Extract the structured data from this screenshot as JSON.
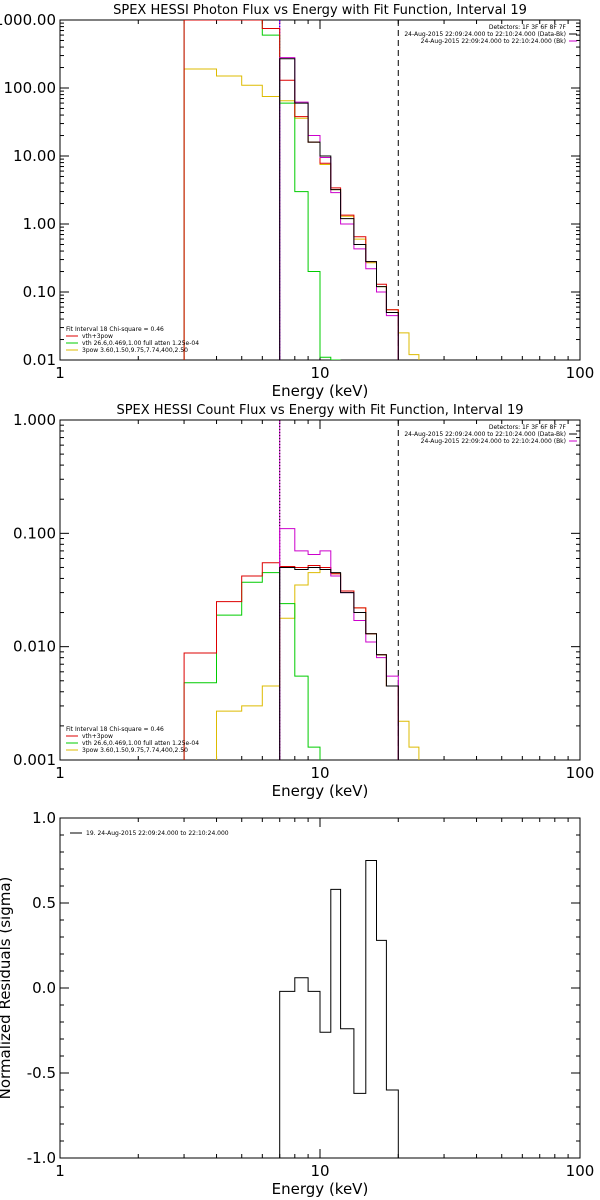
{
  "chart_data": [
    {
      "type": "line",
      "title": "SPEX HESSI Photon Flux vs Energy with Fit Function, Interval 19",
      "xlabel": "Energy (keV)",
      "ylabel": "",
      "xscale": "log",
      "yscale": "log",
      "xlim": [
        1,
        100
      ],
      "ylim": [
        0.01,
        1000
      ],
      "xticks": [
        1,
        10,
        100
      ],
      "xtick_labels": [
        "1",
        "10",
        "100"
      ],
      "yticks": [
        1000,
        100,
        10,
        1,
        0.1,
        0.01
      ],
      "ytick_labels": [
        "1000.00",
        "100.00",
        "10.00",
        "1.00",
        "0.10",
        "0.01"
      ],
      "top_right_text": [
        "Detectors: 1F 3F 6F 8F 7F",
        "24-Aug-2015 22:09:24.000 to 22:10:24.000 (Data-Bk)",
        "24-Aug-2015 22:09:24.000 to 22:10:24.000 (Bk)"
      ],
      "top_right_colors": [
        "#000000",
        "#cc00cc"
      ],
      "legend_header": "Fit Interval 18   Chi-square = 0.46",
      "legend": [
        {
          "label": "vth+3pow",
          "color": "#dd0000"
        },
        {
          "label": "vth 26.6,0.469,1.00  full atten 1.25e-04",
          "color": "#00cc00"
        },
        {
          "label": "3pow 3.60,1.50,9.75,7.74,400,2.50",
          "color": "#ddbb00"
        }
      ],
      "vlines": [
        {
          "x": 7.0,
          "style": "solid",
          "color": "#cc00cc"
        },
        {
          "x": 7.0,
          "style": "dotted",
          "color": "#0000ff"
        },
        {
          "x": 20.0,
          "style": "dashed",
          "color": "#000000"
        }
      ],
      "series": [
        {
          "role": "data_minus_bk",
          "color": "#000000",
          "edges": [
            7.0,
            8.0,
            9.0,
            10.0,
            11.0,
            12.0,
            13.5,
            15.0,
            16.5,
            18.0,
            20.0
          ],
          "values": [
            270,
            60,
            16,
            10,
            3.2,
            1.2,
            0.5,
            0.28,
            0.12,
            0.05
          ]
        },
        {
          "role": "background",
          "color": "#cc00cc",
          "edges": [
            7.0,
            8.0,
            9.0,
            10.0,
            11.0,
            12.0,
            13.5,
            15.0,
            16.5,
            18.0,
            20.0
          ],
          "values": [
            280,
            62,
            20,
            9.5,
            2.9,
            1.0,
            0.43,
            0.22,
            0.1,
            0.045
          ]
        },
        {
          "name": "vth+3pow",
          "color": "#dd0000",
          "edges": [
            3.0,
            4.0,
            5.0,
            6.0,
            7.0,
            8.0,
            9.0,
            10.0,
            11.0,
            12.0,
            13.5,
            15.0,
            16.5,
            18.0,
            20.0
          ],
          "values": [
            1000,
            1000,
            1000,
            750,
            130,
            38,
            16,
            7.8,
            3.4,
            1.35,
            0.65,
            0.28,
            0.13,
            0.055
          ]
        },
        {
          "name": "vth",
          "color": "#00cc00",
          "edges": [
            3.0,
            4.0,
            5.0,
            6.0,
            7.0,
            8.0,
            9.0,
            10.0,
            11.0,
            12.0
          ],
          "values": [
            1000,
            1000,
            1000,
            600,
            60,
            3,
            0.2,
            0.011,
            0.001
          ]
        },
        {
          "name": "3pow",
          "color": "#ddbb00",
          "edges": [
            3.0,
            4.0,
            5.0,
            6.0,
            7.0,
            8.0,
            9.0,
            10.0,
            11.0,
            12.0,
            13.5,
            15.0,
            16.5,
            18.0,
            20.0,
            22.0,
            24.0
          ],
          "values": [
            190,
            150,
            110,
            75,
            65,
            36,
            16,
            7.5,
            3.2,
            1.3,
            0.6,
            0.27,
            0.12,
            0.055,
            0.025,
            0.012
          ]
        }
      ]
    },
    {
      "type": "line",
      "title": "SPEX HESSI Count Flux vs Energy with Fit Function, Interval 19",
      "xlabel": "Energy (keV)",
      "ylabel": "",
      "xscale": "log",
      "yscale": "log",
      "xlim": [
        1,
        100
      ],
      "ylim": [
        0.001,
        1
      ],
      "xticks": [
        1,
        10,
        100
      ],
      "xtick_labels": [
        "1",
        "10",
        "100"
      ],
      "yticks": [
        1,
        0.1,
        0.01,
        0.001
      ],
      "ytick_labels": [
        "1.000",
        "0.100",
        "0.010",
        "0.001"
      ],
      "top_right_text": [
        "Detectors: 1F 3F 6F 8F 7F",
        "24-Aug-2015 22:09:24.000 to 22:10:24.000 (Data-Bk)",
        "24-Aug-2015 22:09:24.000 to 22:10:24.000 (Bk)"
      ],
      "top_right_colors": [
        "#000000",
        "#cc00cc"
      ],
      "legend_header": "Fit Interval 18   Chi-square = 0.46",
      "legend": [
        {
          "label": "vth+3pow",
          "color": "#dd0000"
        },
        {
          "label": "vth 26.6,0.469,1.00  full atten 1.25e-04",
          "color": "#00cc00"
        },
        {
          "label": "3pow 3.60,1.50,9.75,7.74,400,2.50",
          "color": "#ddbb00"
        }
      ],
      "vlines": [
        {
          "x": 7.0,
          "style": "solid",
          "color": "#cc00cc"
        },
        {
          "x": 7.0,
          "style": "dotted",
          "color": "#000000"
        },
        {
          "x": 20.0,
          "style": "dashed",
          "color": "#000000"
        }
      ],
      "series": [
        {
          "role": "data_minus_bk",
          "color": "#000000",
          "edges": [
            7.0,
            8.0,
            9.0,
            10.0,
            11.0,
            12.0,
            13.5,
            15.0,
            16.5,
            18.0,
            20.0
          ],
          "values": [
            0.05,
            0.048,
            0.05,
            0.048,
            0.045,
            0.03,
            0.02,
            0.013,
            0.0085,
            0.0045
          ]
        },
        {
          "role": "background",
          "color": "#cc00cc",
          "edges": [
            7.0,
            8.0,
            9.0,
            10.0,
            11.0,
            12.0,
            13.5,
            15.0,
            16.5,
            18.0,
            20.0
          ],
          "values": [
            0.11,
            0.07,
            0.065,
            0.07,
            0.042,
            0.03,
            0.017,
            0.011,
            0.008,
            0.0055
          ]
        },
        {
          "name": "vth+3pow",
          "color": "#dd0000",
          "edges": [
            3.0,
            4.0,
            5.0,
            6.0,
            7.0,
            8.0,
            9.0,
            10.0,
            11.0,
            12.0,
            13.5,
            15.0,
            16.5,
            18.0,
            20.0
          ],
          "values": [
            0.0088,
            0.025,
            0.042,
            0.055,
            0.051,
            0.05,
            0.052,
            0.05,
            0.044,
            0.031,
            0.022,
            0.013,
            0.0085,
            0.0045
          ]
        },
        {
          "name": "vth",
          "color": "#00cc00",
          "edges": [
            3.0,
            4.0,
            5.0,
            6.0,
            7.0,
            8.0,
            9.0,
            10.0
          ],
          "values": [
            0.0048,
            0.019,
            0.037,
            0.045,
            0.024,
            0.0055,
            0.0013
          ]
        },
        {
          "name": "3pow",
          "color": "#ddbb00",
          "edges": [
            4.0,
            5.0,
            6.0,
            7.0,
            8.0,
            9.0,
            10.0,
            11.0,
            12.0,
            13.5,
            15.0,
            16.5,
            18.0,
            20.0,
            22.0,
            24.0
          ],
          "values": [
            0.0027,
            0.003,
            0.0045,
            0.0178,
            0.035,
            0.045,
            0.05,
            0.044,
            0.031,
            0.022,
            0.013,
            0.0085,
            0.0045,
            0.0022,
            0.0013
          ]
        }
      ]
    },
    {
      "type": "line",
      "title": "",
      "xlabel": "Energy (keV)",
      "ylabel": "Normalized Residuals (sigma)",
      "xscale": "log",
      "yscale": "linear",
      "xlim": [
        1,
        100
      ],
      "ylim": [
        -1.0,
        1.0
      ],
      "xticks": [
        1,
        10,
        100
      ],
      "xtick_labels": [
        "1",
        "10",
        "100"
      ],
      "yticks": [
        1.0,
        0.5,
        0.0,
        -0.5,
        -1.0
      ],
      "ytick_labels": [
        "1.0",
        "0.5",
        "0.0",
        "-0.5",
        "-1.0"
      ],
      "legend": [
        {
          "label": "19. 24-Aug-2015 22:09:24.000 to 22:10:24.000",
          "color": "#000000"
        }
      ],
      "series": [
        {
          "name": "19. 24-Aug-2015 22:09:24.000 to 22:10:24.000",
          "color": "#000000",
          "edges": [
            7.0,
            8.0,
            9.0,
            10.0,
            11.0,
            12.0,
            13.5,
            15.0,
            16.5,
            18.0,
            20.0
          ],
          "values": [
            -0.02,
            0.06,
            -0.02,
            -0.26,
            0.58,
            -0.24,
            -0.62,
            0.75,
            0.28,
            -0.6
          ]
        }
      ]
    }
  ]
}
